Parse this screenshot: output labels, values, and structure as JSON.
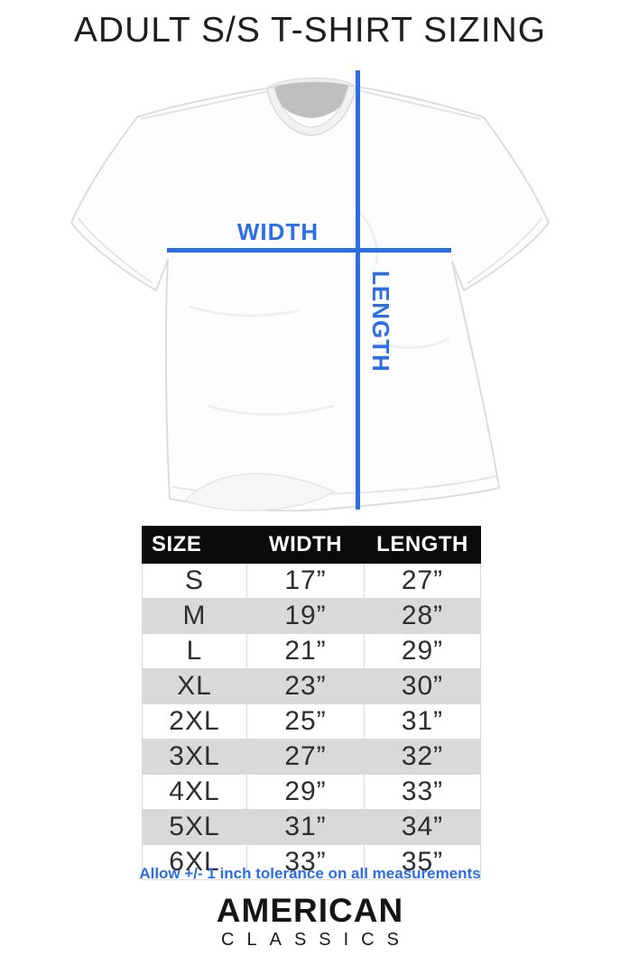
{
  "page": {
    "title": "ADULT S/S T-SHIRT SIZING"
  },
  "diagram": {
    "width_label": "WIDTH",
    "length_label": "LENGTH",
    "accent_color": "#2b6ee5",
    "tshirt_icon": "white short-sleeve crew-neck t-shirt, flat lay"
  },
  "table": {
    "headers": [
      "SIZE",
      "WIDTH",
      "LENGTH"
    ],
    "header_bg": "#0b0b0b",
    "stripe_color": "#d9d9d9",
    "rows": [
      {
        "size": "S",
        "width": "17”",
        "length": "27”"
      },
      {
        "size": "M",
        "width": "19”",
        "length": "28”"
      },
      {
        "size": "L",
        "width": "21”",
        "length": "29”"
      },
      {
        "size": "XL",
        "width": "23”",
        "length": "30”"
      },
      {
        "size": "2XL",
        "width": "25”",
        "length": "31”"
      },
      {
        "size": "3XL",
        "width": "27”",
        "length": "32”"
      },
      {
        "size": "4XL",
        "width": "29”",
        "length": "33”"
      },
      {
        "size": "5XL",
        "width": "31”",
        "length": "34”"
      },
      {
        "size": "6XL",
        "width": "33”",
        "length": "35”"
      }
    ]
  },
  "footnote": {
    "text": "Allow +/- 1 inch tolerance on all measurements"
  },
  "brand": {
    "line1": "AMERICAN",
    "line2": "CLASSICS"
  }
}
